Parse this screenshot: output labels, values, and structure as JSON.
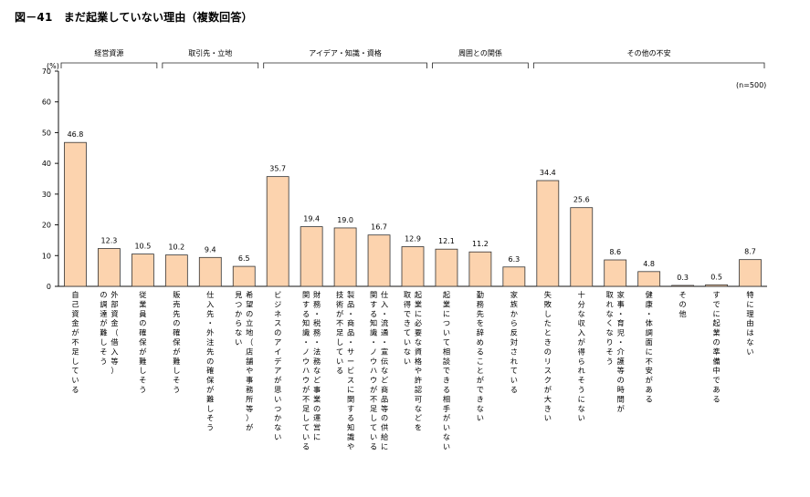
{
  "figure": {
    "title": "図－41　まだ起業していない理由（複数回答）"
  },
  "chart_data": {
    "type": "bar",
    "title": "図－41　まだ起業していない理由（複数回答）",
    "y_unit_label": "(%)",
    "sample_note": "(n=500)",
    "ylim": [
      0,
      70
    ],
    "yticks": [
      0,
      10,
      20,
      30,
      40,
      50,
      60,
      70
    ],
    "grid": false,
    "bar_color": "#fcd3ae",
    "bar_stroke": "#333333",
    "groups": [
      {
        "label": "経営資源",
        "start": 0,
        "end": 2
      },
      {
        "label": "取引先・立地",
        "start": 3,
        "end": 5
      },
      {
        "label": "アイデア・知識・資格",
        "start": 6,
        "end": 10
      },
      {
        "label": "周囲との関係",
        "start": 11,
        "end": 13
      },
      {
        "label": "その他の不安",
        "start": 14,
        "end": 20
      }
    ],
    "categories": [
      "自己資金が不足している",
      "外部資金（借入等）の調達が難しそう",
      "従業員の確保が難しそう",
      "販売先の確保が難しそう",
      "仕入先・外注先の確保が難しそう",
      "希望の立地（店舗や事務所等）が見つからない",
      "ビジネスのアイデアが思いつかない",
      "財務・税務・法務など事業の運営に関する知識・ノウハウが不足している",
      "製品・商品・サービスに関する知識や技術が不足している",
      "仕入・流通・宣伝など商品等の供給に関する知識・ノウハウが不足している",
      "起業に必要な資格や許認可などを取得できていない",
      "起業について相談できる相手がいない",
      "勤務先を辞めることができない",
      "家族から反対されている",
      "失敗したときのリスクが大きい",
      "十分な収入が得られそうにない",
      "家事・育児・介護等の時間が取れなくなりそう",
      "健康・体調面に不安がある",
      "その他",
      "すでに起業の準備中である",
      "特に理由はない"
    ],
    "label_columns": [
      [
        "自己資金が不足している"
      ],
      [
        "外部資金（借入等）",
        "の調達が難しそう"
      ],
      [
        "従業員の確保が難しそう"
      ],
      [
        "販売先の確保が難しそう"
      ],
      [
        "仕入先・外注先の確保が難しそう"
      ],
      [
        "希望の立地（店舗や事務所等）が",
        "見つからない"
      ],
      [
        "ビジネスのアイデアが思いつかない"
      ],
      [
        "財務・税務・法務など事業の運営に",
        "関する知識・ノウハウが不足している"
      ],
      [
        "製品・商品・サービスに関する知識や",
        "技術が不足している"
      ],
      [
        "仕入・流通・宣伝など商品等の供給に",
        "関する知識・ノウハウが不足している"
      ],
      [
        "起業に必要な資格や許認可などを",
        "取得できていない"
      ],
      [
        "起業について相談できる相手がいない"
      ],
      [
        "勤務先を辞めることができない"
      ],
      [
        "家族から反対されている"
      ],
      [
        "失敗したときのリスクが大きい"
      ],
      [
        "十分な収入が得られそうにない"
      ],
      [
        "家事・育児・介護等の時間が",
        "取れなくなりそう"
      ],
      [
        "健康・体調面に不安がある"
      ],
      [
        "その他"
      ],
      [
        "すでに起業の準備中である"
      ],
      [
        "特に理由はない"
      ]
    ],
    "values": [
      46.8,
      12.3,
      10.5,
      10.2,
      9.4,
      6.5,
      35.7,
      19.4,
      19.0,
      16.7,
      12.9,
      12.1,
      11.2,
      6.3,
      34.4,
      25.6,
      8.6,
      4.8,
      0.3,
      0.5,
      8.7
    ],
    "value_labels": [
      "46.8",
      "12.3",
      "10.5",
      "10.2",
      "9.4",
      "6.5",
      "35.7",
      "19.4",
      "19.0",
      "16.7",
      "12.9",
      "12.1",
      "11.2",
      "6.3",
      "34.4",
      "25.6",
      "8.6",
      "4.8",
      "0.3",
      "0.5",
      "8.7"
    ]
  }
}
